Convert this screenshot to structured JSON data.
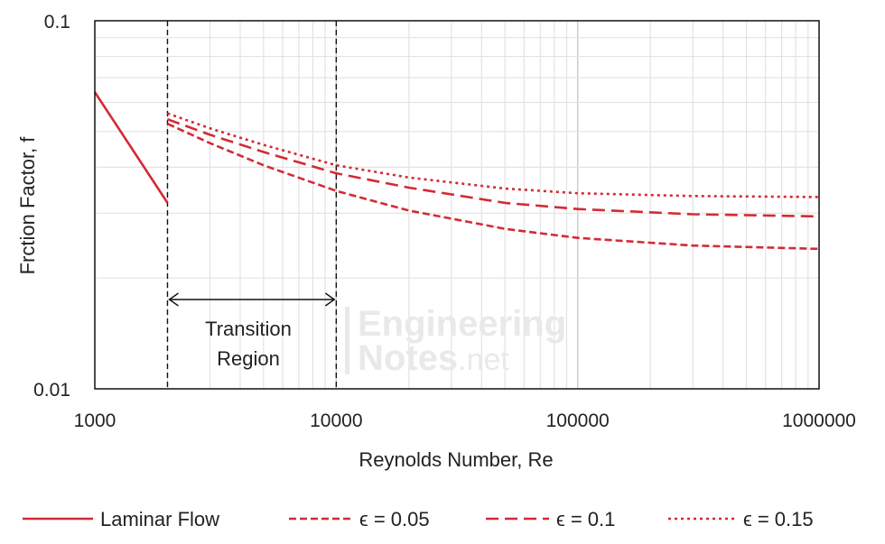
{
  "chart_data": {
    "type": "line",
    "xscale": "log",
    "yscale": "log",
    "xlim": [
      1000,
      1000000
    ],
    "ylim": [
      0.01,
      0.1
    ],
    "xlabel": "Reynolds Number, Re",
    "ylabel": "Frction Factor, f",
    "xticks": [
      "1000",
      "10000",
      "100000",
      "1000000"
    ],
    "yticks": [
      "0.01",
      "0.1"
    ],
    "grid": true,
    "legend_position": "bottom",
    "accent_color": "#d42a35",
    "annotations": {
      "region_label_line1": "Transition",
      "region_label_line2": "Region",
      "region_start_x": 2000,
      "region_end_x": 10000
    },
    "watermark": {
      "line1": "Engineering",
      "line2_a": "Notes",
      "line2_b": ".net"
    },
    "series": [
      {
        "name": "Laminar Flow",
        "style": "solid",
        "x": [
          1000,
          2000
        ],
        "y": [
          0.064,
          0.032
        ]
      },
      {
        "name": "ϵ = 0.05",
        "style": "short-dash",
        "x": [
          2000,
          3000,
          5000,
          10000,
          20000,
          50000,
          100000,
          300000,
          1000000
        ],
        "y": [
          0.0525,
          0.0465,
          0.0405,
          0.0345,
          0.0305,
          0.0272,
          0.0257,
          0.0245,
          0.024
        ]
      },
      {
        "name": "ϵ = 0.1",
        "style": "dash",
        "x": [
          2000,
          3000,
          5000,
          10000,
          20000,
          50000,
          100000,
          300000,
          1000000
        ],
        "y": [
          0.054,
          0.049,
          0.044,
          0.0385,
          0.0352,
          0.032,
          0.0308,
          0.0298,
          0.0294
        ]
      },
      {
        "name": "ϵ = 0.15",
        "style": "dot",
        "x": [
          2000,
          3000,
          5000,
          10000,
          20000,
          50000,
          100000,
          300000,
          1000000
        ],
        "y": [
          0.056,
          0.051,
          0.046,
          0.0405,
          0.0375,
          0.035,
          0.034,
          0.0334,
          0.0332
        ]
      }
    ]
  }
}
